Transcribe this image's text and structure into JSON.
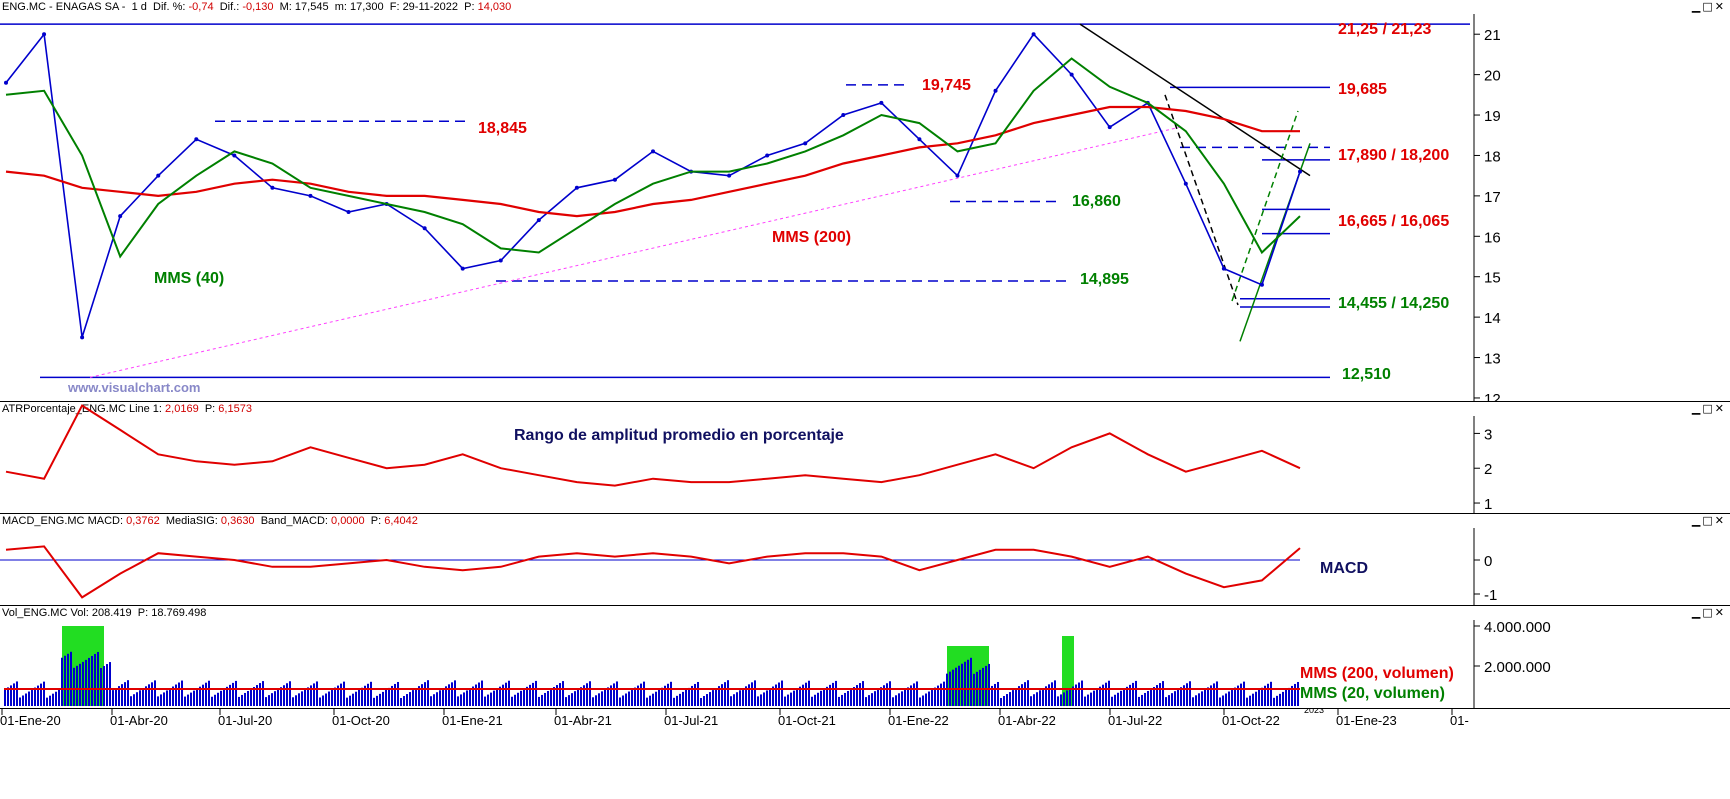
{
  "colors": {
    "price_line": "#0000cc",
    "mms200": "#e00000",
    "mms40": "#008000",
    "annotation_red": "#e00000",
    "annotation_green": "#008000",
    "atr_line": "#e00000",
    "volume_bars": "#0000cc",
    "volume_highlight": "#22dd22"
  },
  "price_panel": {
    "header": {
      "ticker": "ENG.MC - ENAGAS SA -",
      "period": "1 d",
      "dif_pct_label": "Dif. %:",
      "dif_pct": "-0,74",
      "dif_label": "Dif.:",
      "dif": "-0,130",
      "m_label": "M: 17,545",
      "m2_label": "m: 17,300",
      "date": "F: 29-11-2022",
      "p_label": "P:",
      "p": "14,030"
    },
    "watermark": "www.visualchart.com",
    "labels": {
      "mms40": "MMS (40)",
      "mms200": "MMS (200)",
      "l_2125": "21,25 / 21,23",
      "l_19685": "19,685",
      "l_19745": "19,745",
      "l_18845": "18,845",
      "l_17890": "17,890 / 18,200",
      "l_16860": "16,860",
      "l_16665": "16,665 / 16,065",
      "l_14895": "14,895",
      "l_14455": "14,455 / 14,250",
      "l_12510": "12,510"
    },
    "y_ticks": [
      "21",
      "20",
      "19",
      "18",
      "17",
      "16",
      "15",
      "14",
      "13",
      "12"
    ]
  },
  "atr_panel": {
    "header": {
      "name": "ATRPorcentaje_ENG.MC",
      "line": "Line 1:",
      "line_val": "2,0169",
      "p_label": "P:",
      "p": "6,1573"
    },
    "title": "Rango de amplitud promedio en porcentaje",
    "y_ticks": [
      "3",
      "2",
      "1"
    ]
  },
  "macd_panel": {
    "header": {
      "name": "MACD_ENG.MC",
      "macd_label": "MACD:",
      "macd": "0,3762",
      "sig_label": "MediaSIG:",
      "sig": "0,3630",
      "band_label": "Band_MACD:",
      "band": "0,0000",
      "p_label": "P:",
      "p": "6,4042"
    },
    "label": "MACD",
    "y_ticks": [
      "0",
      "-1"
    ]
  },
  "vol_panel": {
    "header": {
      "name": "Vol_ENG.MC",
      "vol_label": "Vol:",
      "vol": "208.419",
      "p_label": "P:",
      "p": "18.769.498"
    },
    "mms200_label": "MMS (200, volumen)",
    "mms20_label": "MMS (20, volumen)",
    "y_ticks": [
      "4.000.000",
      "2.000.000"
    ]
  },
  "x_axis": {
    "labels": [
      "01-Ene-20",
      "01-Abr-20",
      "01-Jul-20",
      "01-Oct-20",
      "01-Ene-21",
      "01-Abr-21",
      "01-Jul-21",
      "01-Oct-21",
      "01-Ene-22",
      "01-Abr-22",
      "01-Jul-22",
      "01-Oct-22",
      "01-Ene-23",
      "01-"
    ],
    "year_marker": "2023"
  },
  "chart_data": {
    "type": "line",
    "title": "ENG.MC - ENAGAS SA - 1 d",
    "x": [
      "2020-01",
      "2020-02",
      "2020-03",
      "2020-04",
      "2020-05",
      "2020-06",
      "2020-07",
      "2020-08",
      "2020-09",
      "2020-10",
      "2020-11",
      "2020-12",
      "2021-01",
      "2021-02",
      "2021-03",
      "2021-04",
      "2021-05",
      "2021-06",
      "2021-07",
      "2021-08",
      "2021-09",
      "2021-10",
      "2021-11",
      "2021-12",
      "2022-01",
      "2022-02",
      "2022-03",
      "2022-04",
      "2022-05",
      "2022-06",
      "2022-07",
      "2022-08",
      "2022-09",
      "2022-10",
      "2022-11"
    ],
    "series": [
      {
        "name": "ENG.MC",
        "values": [
          19.8,
          21.0,
          13.5,
          16.5,
          17.5,
          18.4,
          18.0,
          17.2,
          17.0,
          16.6,
          16.8,
          16.2,
          15.2,
          15.4,
          16.4,
          17.2,
          17.4,
          18.1,
          17.6,
          17.5,
          18.0,
          18.3,
          19.0,
          19.3,
          18.4,
          17.5,
          19.6,
          21.0,
          20.0,
          18.7,
          19.3,
          17.3,
          15.2,
          14.8,
          17.6
        ]
      },
      {
        "name": "MMS (200)",
        "values": [
          17.6,
          17.5,
          17.2,
          17.1,
          17.0,
          17.1,
          17.3,
          17.4,
          17.3,
          17.1,
          17.0,
          17.0,
          16.9,
          16.8,
          16.6,
          16.5,
          16.6,
          16.8,
          16.9,
          17.1,
          17.3,
          17.5,
          17.8,
          18.0,
          18.2,
          18.3,
          18.5,
          18.8,
          19.0,
          19.2,
          19.2,
          19.1,
          18.9,
          18.6,
          18.6
        ]
      },
      {
        "name": "MMS (40)",
        "values": [
          19.5,
          19.6,
          18.0,
          15.5,
          16.8,
          17.5,
          18.1,
          17.8,
          17.2,
          17.0,
          16.8,
          16.6,
          16.3,
          15.7,
          15.6,
          16.2,
          16.8,
          17.3,
          17.6,
          17.6,
          17.8,
          18.1,
          18.5,
          19.0,
          18.8,
          18.1,
          18.3,
          19.6,
          20.4,
          19.7,
          19.3,
          18.6,
          17.3,
          15.6,
          16.5
        ]
      }
    ],
    "hlines": [
      21.25,
      19.685,
      19.745,
      18.845,
      17.89,
      18.2,
      16.86,
      16.665,
      16.065,
      14.895,
      14.455,
      14.25,
      12.51
    ],
    "ylim": [
      11.9,
      21.5
    ],
    "xlabel": "",
    "ylabel": ""
  }
}
